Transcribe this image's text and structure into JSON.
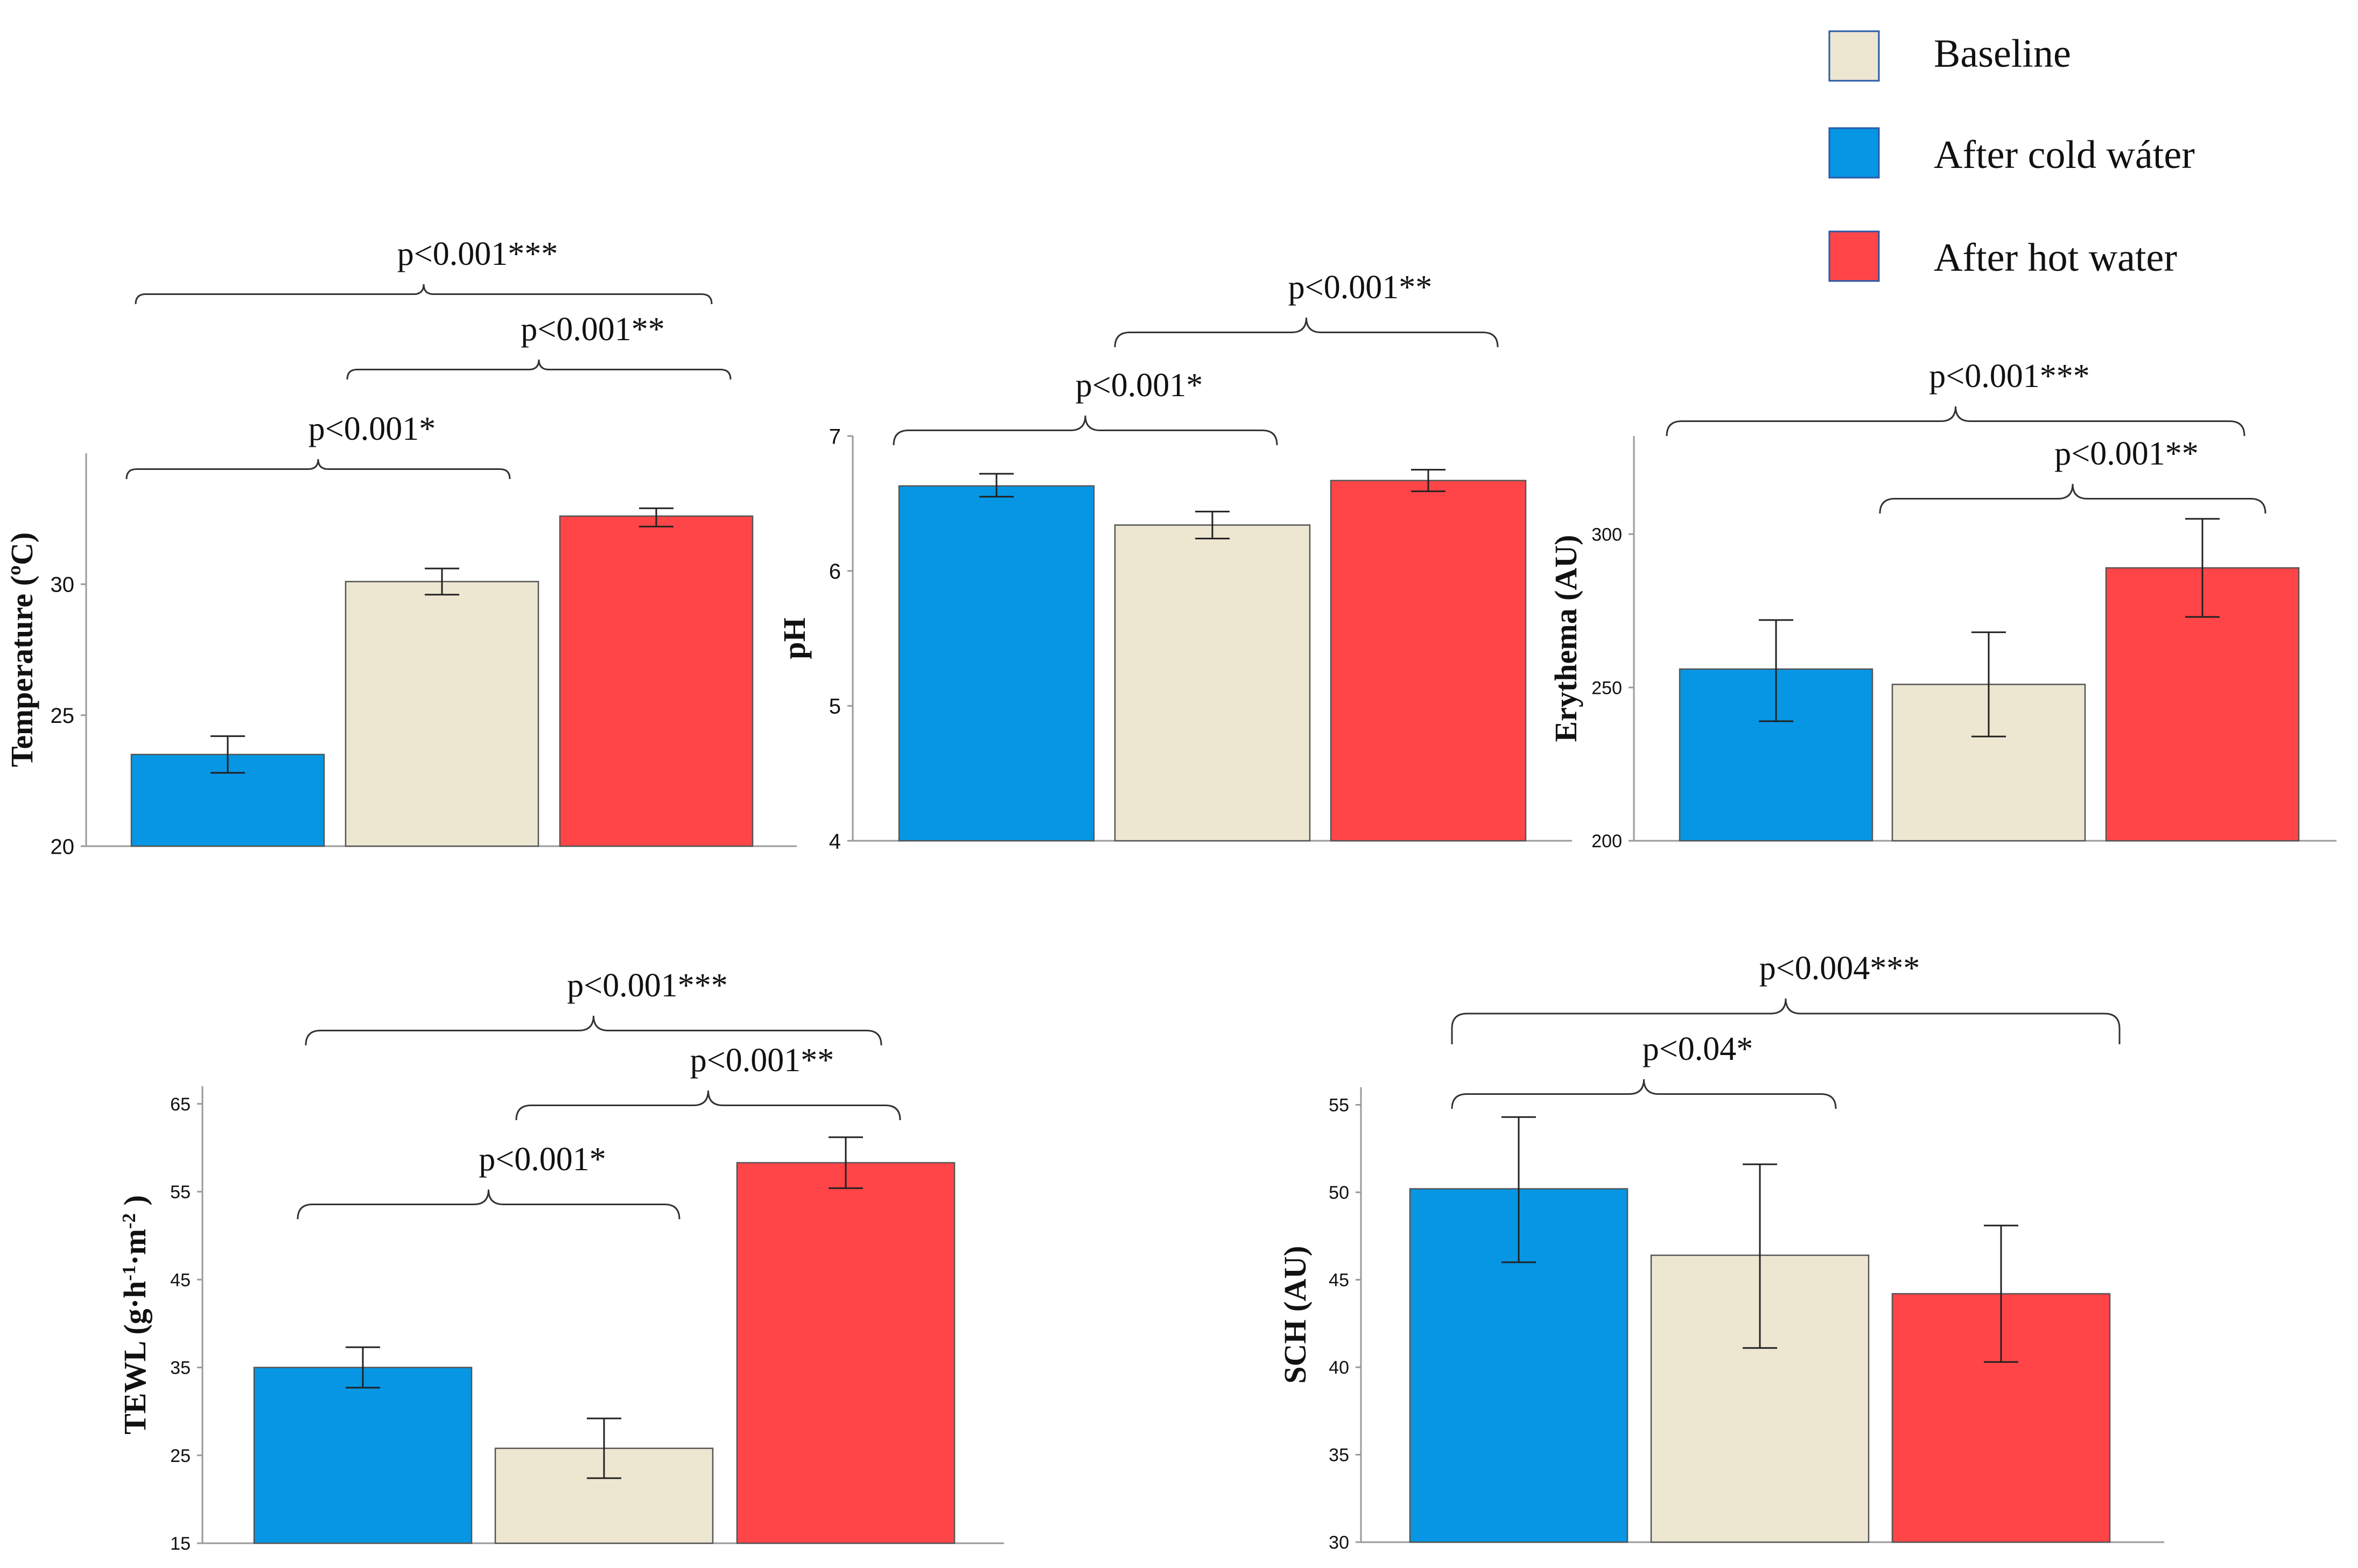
{
  "legend": {
    "items": [
      {
        "label": "Baseline",
        "color": "#ede6d1"
      },
      {
        "label": "After cold wáter",
        "color": "#0696e4"
      },
      {
        "label": "After hot water",
        "color": "#ff4548"
      }
    ]
  },
  "chart_data": [
    {
      "type": "bar",
      "ylabel": "Temperature (ºC)",
      "ylim": [
        20,
        35
      ],
      "yticks": [
        "20",
        "25",
        "30"
      ],
      "categories": [
        "After cold wáter",
        "Baseline",
        "After hot water"
      ],
      "values": [
        23.5,
        30.1,
        32.6
      ],
      "errors": [
        [
          22.8,
          24.2
        ],
        [
          29.6,
          30.6
        ],
        [
          32.2,
          32.9
        ]
      ],
      "colors": [
        "#0696e4",
        "#ede6d1",
        "#ff4548"
      ],
      "comparisons": [
        {
          "label": "p<0.001***",
          "from": 0,
          "to": 2
        },
        {
          "label": "p<0.001**",
          "from": 1,
          "to": 2
        },
        {
          "label": "p<0.001*",
          "from": 0,
          "to": 1
        }
      ]
    },
    {
      "type": "bar",
      "ylabel": "pH",
      "ylim": [
        4,
        7
      ],
      "yticks": [
        "4",
        "5",
        "6",
        "7"
      ],
      "categories": [
        "After cold wáter",
        "Baseline",
        "After hot water"
      ],
      "values": [
        6.63,
        6.34,
        6.67
      ],
      "errors": [
        [
          6.55,
          6.72
        ],
        [
          6.24,
          6.44
        ],
        [
          6.59,
          6.75
        ]
      ],
      "colors": [
        "#0696e4",
        "#ede6d1",
        "#ff4548"
      ],
      "comparisons": [
        {
          "label": "p<0.001**",
          "from": 1,
          "to": 2
        },
        {
          "label": "p<0.001*",
          "from": 0,
          "to": 1
        }
      ]
    },
    {
      "type": "bar",
      "ylabel": "Erythema (AU)",
      "ylim": [
        200,
        332
      ],
      "yticks": [
        "200",
        "250",
        "300"
      ],
      "categories": [
        "After cold wáter",
        "Baseline",
        "After hot water"
      ],
      "values": [
        256,
        251,
        289
      ],
      "errors": [
        [
          239,
          272
        ],
        [
          234,
          268
        ],
        [
          273,
          305
        ]
      ],
      "colors": [
        "#0696e4",
        "#ede6d1",
        "#ff4548"
      ],
      "comparisons": [
        {
          "label": "p<0.001***",
          "from": 0,
          "to": 2
        },
        {
          "label": "p<0.001**",
          "from": 1,
          "to": 2
        }
      ]
    },
    {
      "type": "bar",
      "ylabel": "TEWL (g·h·m )",
      "ylabel_sups": [
        "-1",
        "-2"
      ],
      "ylim": [
        15,
        67
      ],
      "yticks": [
        "15",
        "25",
        "35",
        "45",
        "55",
        "65"
      ],
      "categories": [
        "After cold wáter",
        "Baseline",
        "After hot water"
      ],
      "values": [
        35,
        25.8,
        58.3
      ],
      "errors": [
        [
          32.7,
          37.3
        ],
        [
          22.4,
          29.2
        ],
        [
          55.4,
          61.2
        ]
      ],
      "colors": [
        "#0696e4",
        "#ede6d1",
        "#ff4548"
      ],
      "comparisons": [
        {
          "label": "p<0.001***",
          "from": 0,
          "to": 2
        },
        {
          "label": "p<0.001**",
          "from": 1,
          "to": 2
        },
        {
          "label": "p<0.001*",
          "from": 0,
          "to": 1
        }
      ]
    },
    {
      "type": "bar",
      "ylabel": "SCH (AU)",
      "ylim": [
        30,
        56
      ],
      "yticks": [
        "30",
        "35",
        "40",
        "45",
        "50",
        "55"
      ],
      "categories": [
        "After cold wáter",
        "Baseline",
        "After hot water"
      ],
      "values": [
        50.2,
        46.4,
        44.2
      ],
      "errors": [
        [
          46,
          54.3
        ],
        [
          41.1,
          51.6
        ],
        [
          40.3,
          48.1
        ]
      ],
      "colors": [
        "#0696e4",
        "#ede6d1",
        "#ff4548"
      ],
      "comparisons": [
        {
          "label": "p<0.004***",
          "from": 0,
          "to": 2
        },
        {
          "label": "p<0.04*",
          "from": 0,
          "to": 1
        }
      ]
    }
  ]
}
